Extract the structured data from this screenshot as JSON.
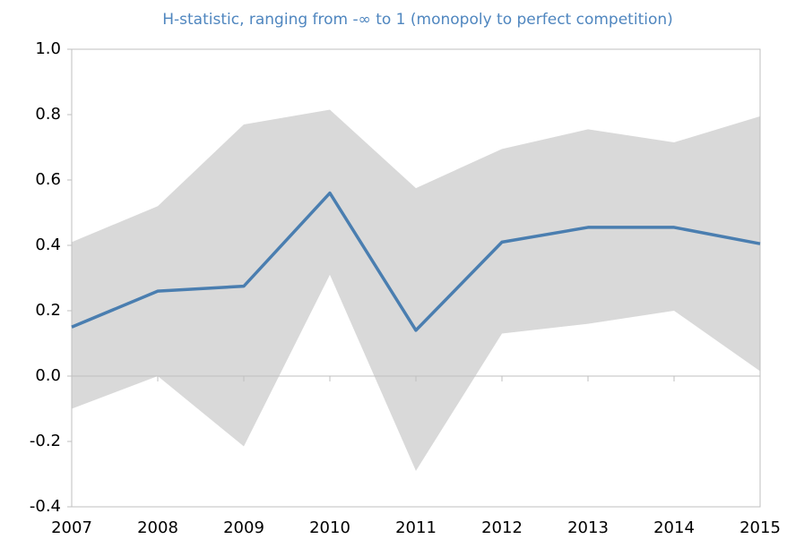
{
  "chart_data": {
    "type": "line",
    "title": "H-statistic, ranging from -∞ to 1 (monopoly to perfect competition)",
    "categories": [
      "2007",
      "2008",
      "2009",
      "2010",
      "2011",
      "2012",
      "2013",
      "2014",
      "2015"
    ],
    "series": [
      {
        "color": "#4a7eb0",
        "values": [
          0.15,
          0.26,
          0.275,
          0.56,
          0.14,
          0.41,
          0.455,
          0.455,
          0.405
        ]
      }
    ],
    "band": {
      "color": "#d9d9d9",
      "upper": [
        0.41,
        0.52,
        0.77,
        0.815,
        0.575,
        0.695,
        0.755,
        0.715,
        0.795
      ],
      "lower": [
        -0.1,
        0.0,
        -0.215,
        0.31,
        -0.29,
        0.13,
        0.16,
        0.2,
        0.015
      ]
    },
    "ylim": [
      -0.4,
      1.0
    ],
    "yticks": [
      {
        "value": 1,
        "label": "1.0"
      },
      0.8,
      0.6,
      0.4,
      0.2,
      {
        "value": 0,
        "label": "0.0"
      },
      -0.2,
      -0.4
    ]
  }
}
